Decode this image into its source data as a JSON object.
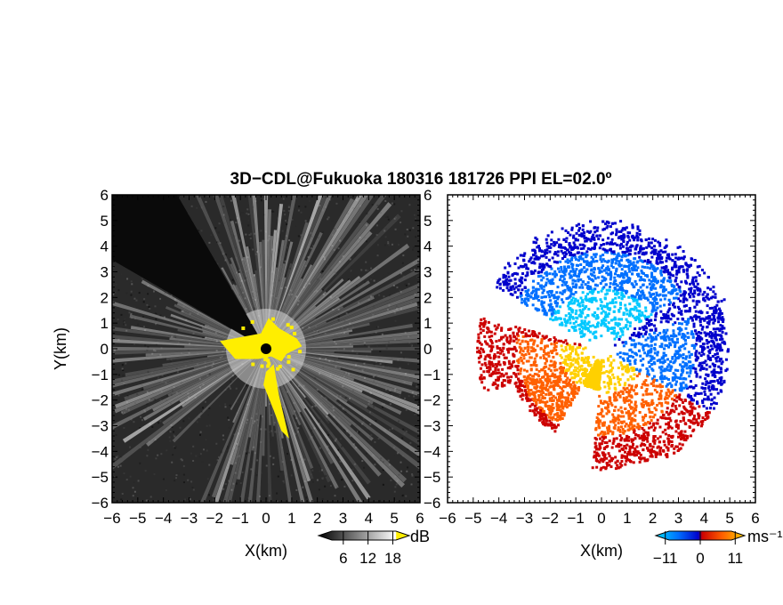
{
  "figure": {
    "title": "3D−CDL@Fukuoka 180316 181726 PPI EL=02.0º"
  },
  "chart_data": [
    {
      "type": "heatmap",
      "panel": "reflectivity",
      "xlabel": "X(km)",
      "ylabel": "Y(km)",
      "xlim": [
        -6,
        6
      ],
      "ylim": [
        -6,
        6
      ],
      "xticks": [
        "−6",
        "−5",
        "−4",
        "−3",
        "−2",
        "−1",
        "0",
        "1",
        "2",
        "3",
        "4",
        "5",
        "6"
      ],
      "yticks": [
        "−6",
        "−5",
        "−4",
        "−3",
        "−2",
        "−1",
        "0",
        "1",
        "2",
        "3",
        "4",
        "5",
        "6"
      ],
      "background_color": "#2a2a2a",
      "colorbar": {
        "unit": "dB",
        "tick_labels": [
          "6",
          "12",
          "18"
        ],
        "tick_values": [
          6,
          12,
          18
        ],
        "range": [
          0,
          22
        ],
        "low_color": "#000000",
        "high_color": "#ffffff",
        "overflow_color": "#ffee00"
      },
      "features": {
        "radar_center": [
          0,
          0
        ],
        "blocked_sector_deg": [
          120,
          150
        ],
        "clutter_color": "#ffee00",
        "max_echo_range_km": 6
      }
    },
    {
      "type": "heatmap",
      "panel": "doppler_velocity",
      "xlabel": "X(km)",
      "xlim": [
        -6,
        6
      ],
      "ylim": [
        -6,
        6
      ],
      "xticks": [
        "−6",
        "−5",
        "−4",
        "−3",
        "−2",
        "−1",
        "0",
        "1",
        "2",
        "3",
        "4",
        "5",
        "6"
      ],
      "yticks": [
        "−6",
        "−5",
        "−4",
        "−3",
        "−2",
        "−1",
        "0",
        "1",
        "2",
        "3",
        "4",
        "5",
        "6"
      ],
      "background_color": "#ffffff",
      "colorbar": {
        "unit": "ms⁻¹",
        "tick_labels": [
          "−11",
          "0",
          "11"
        ],
        "tick_values": [
          -11,
          0,
          11
        ],
        "range": [
          -14,
          14
        ],
        "negative_colors": [
          "#0000cc",
          "#0070ff",
          "#00c8ff"
        ],
        "positive_colors": [
          "#ffd000",
          "#ff6000",
          "#cc0000"
        ]
      },
      "features": {
        "approaching_color": "#00b0ff",
        "receding_color": "#ff5a00",
        "max_echo_range_km": 4.8
      }
    }
  ]
}
